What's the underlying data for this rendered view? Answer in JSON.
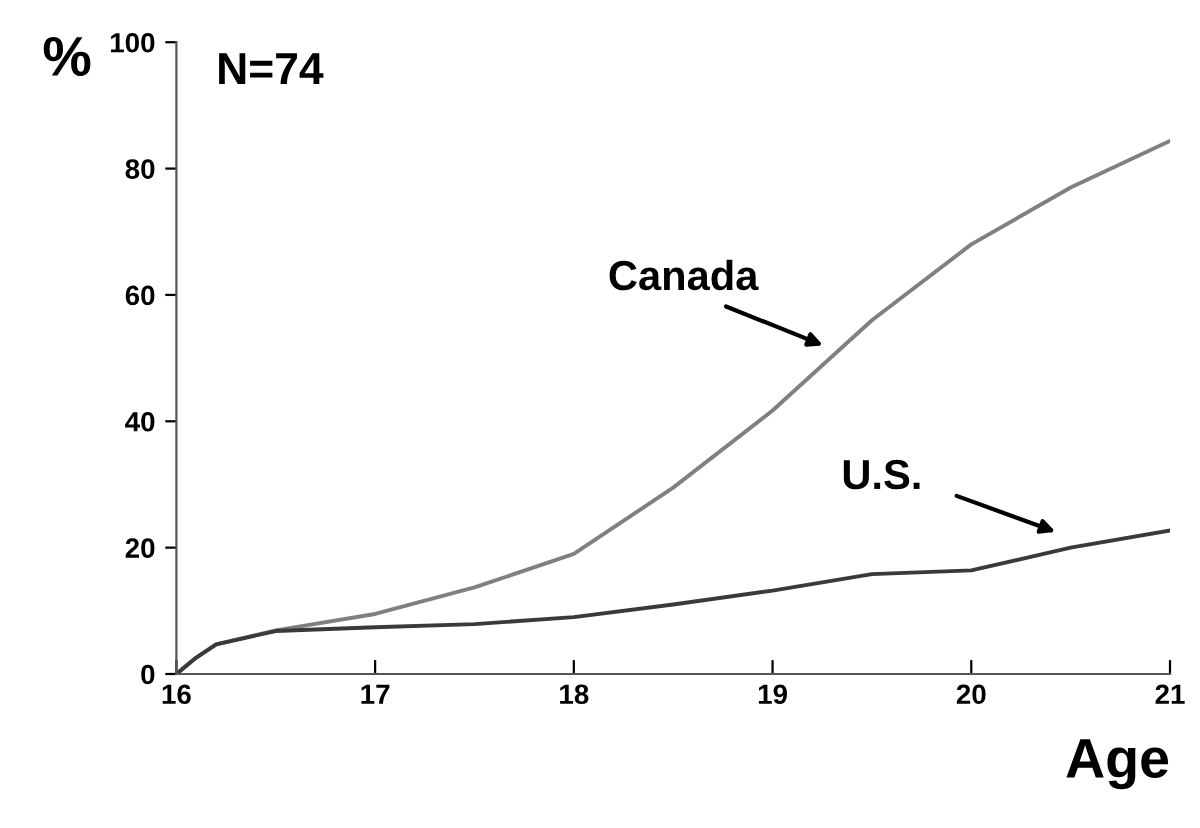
{
  "chart_data": {
    "type": "line",
    "xlabel": "Age",
    "ylabel": "%",
    "annotations": [
      "N=74"
    ],
    "xlim": [
      16,
      21
    ],
    "ylim": [
      0,
      100
    ],
    "xticks": [
      16,
      17,
      18,
      19,
      20,
      21
    ],
    "yticks": [
      0,
      20,
      40,
      60,
      80,
      100
    ],
    "grid": false,
    "legend": false,
    "marker": "none",
    "line_style": "solid",
    "series": [
      {
        "name": "Canada",
        "color": "#808080",
        "x": [
          16,
          16.1,
          16.2,
          16.5,
          17,
          17.5,
          18,
          18.5,
          19,
          19.5,
          20,
          20.5,
          21
        ],
        "values": [
          0,
          2.6,
          4.7,
          6.9,
          9.5,
          13.7,
          19,
          29.5,
          41.7,
          56,
          68,
          77,
          84.4
        ]
      },
      {
        "name": "U.S.",
        "color": "#3a3a3a",
        "x": [
          16,
          16.1,
          16.2,
          16.5,
          17,
          17.5,
          18,
          18.5,
          19,
          19.5,
          20,
          20.5,
          21
        ],
        "values": [
          0,
          2.6,
          4.7,
          6.8,
          7.4,
          7.9,
          9,
          11,
          13.2,
          15.8,
          16.4,
          20,
          22.7
        ]
      }
    ]
  }
}
